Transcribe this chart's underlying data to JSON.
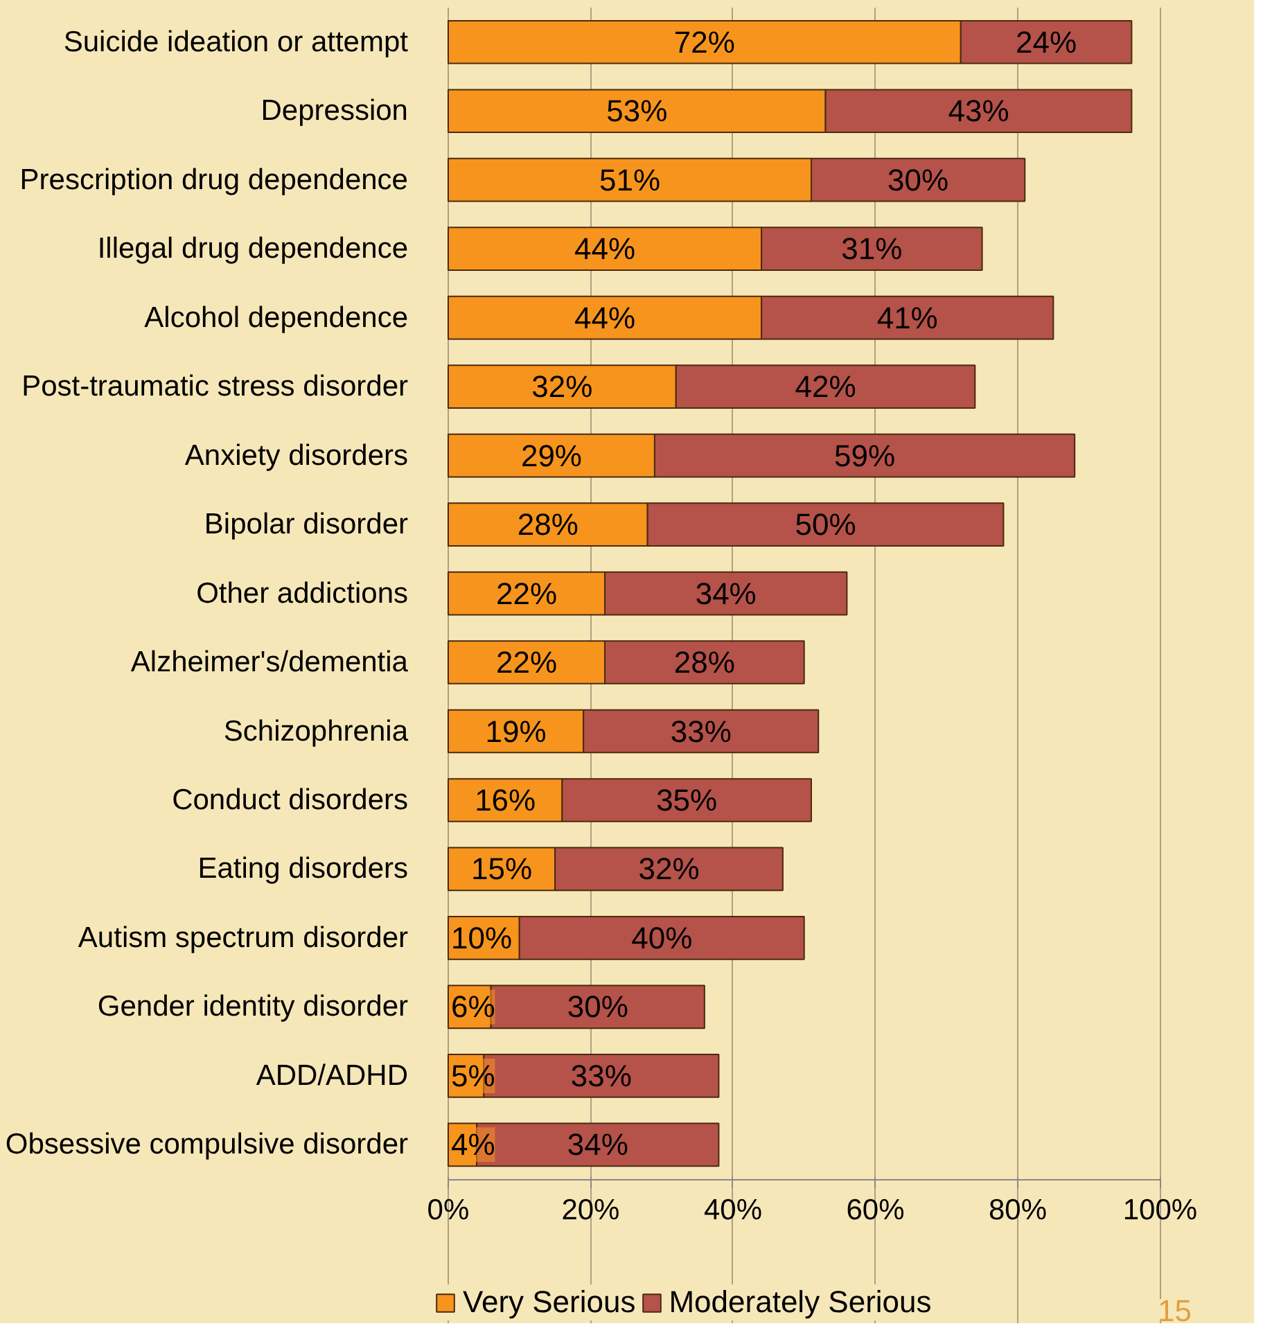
{
  "chart_data": {
    "type": "bar",
    "orientation": "horizontal",
    "stacked": true,
    "categories": [
      "Suicide ideation or attempt",
      "Depression",
      "Prescription drug dependence",
      "Illegal drug dependence",
      "Alcohol dependence",
      "Post-traumatic stress disorder",
      "Anxiety disorders",
      "Bipolar disorder",
      "Other addictions",
      "Alzheimer's/dementia",
      "Schizophrenia",
      "Conduct disorders",
      "Eating disorders",
      "Autism spectrum disorder",
      "Gender identity disorder",
      "ADD/ADHD",
      "Obsessive compulsive disorder"
    ],
    "series": [
      {
        "name": "Very Serious",
        "color": "#f7941d",
        "values": [
          72,
          53,
          51,
          44,
          44,
          32,
          29,
          28,
          22,
          22,
          19,
          16,
          15,
          10,
          6,
          5,
          4
        ],
        "value_labels": [
          "72%",
          "53%",
          "51%",
          "44%",
          "44%",
          "32%",
          "29%",
          "28%",
          "22%",
          "22%",
          "19%",
          "16%",
          "15%",
          "10%",
          "6%",
          "5%",
          "4%"
        ]
      },
      {
        "name": "Moderately Serious",
        "color": "#b5524a",
        "values": [
          24,
          43,
          30,
          31,
          41,
          42,
          59,
          50,
          34,
          28,
          33,
          35,
          32,
          40,
          30,
          33,
          34
        ],
        "value_labels": [
          "24%",
          "43%",
          "30%",
          "31%",
          "41%",
          "42%",
          "59%",
          "50%",
          "34%",
          "28%",
          "33%",
          "35%",
          "32%",
          "40%",
          "30%",
          "33%",
          "34%"
        ]
      }
    ],
    "xlim": [
      0,
      100
    ],
    "xticks": [
      {
        "value": 0,
        "label": "0%"
      },
      {
        "value": 20,
        "label": "20%"
      },
      {
        "value": 40,
        "label": "40%"
      },
      {
        "value": 60,
        "label": "60%"
      },
      {
        "value": 80,
        "label": "80%"
      },
      {
        "value": 100,
        "label": "100%"
      }
    ],
    "grid": "x",
    "legend": "bottom",
    "annotations": [
      "15"
    ]
  }
}
